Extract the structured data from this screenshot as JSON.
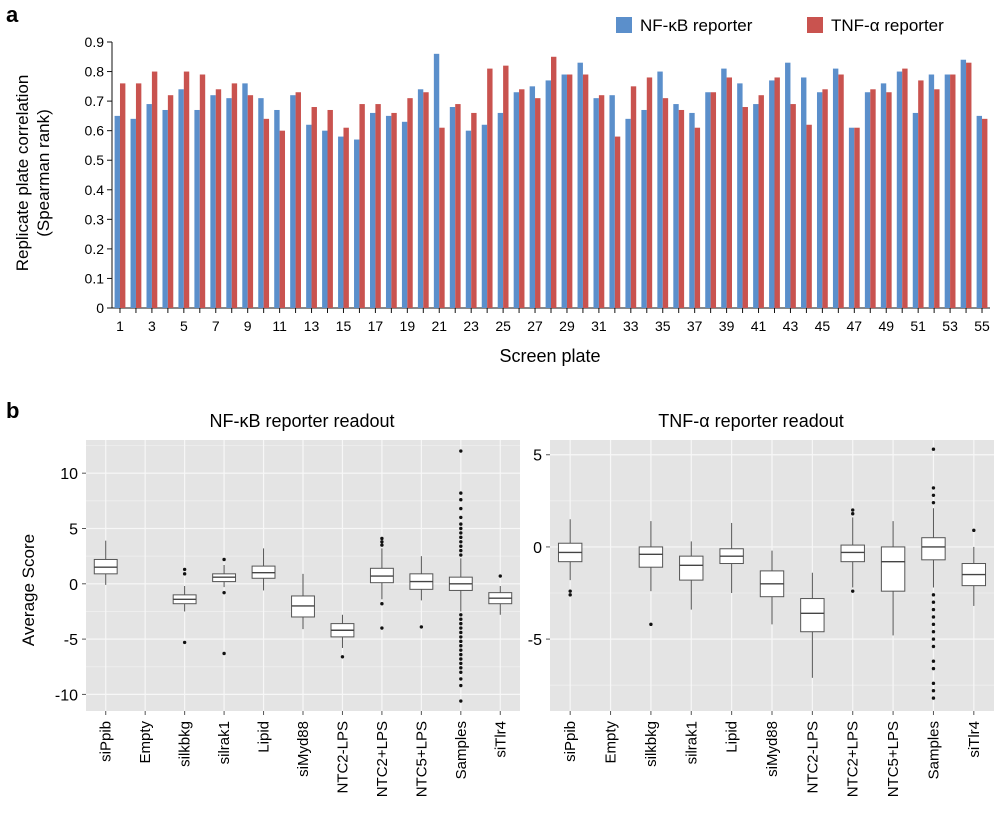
{
  "panel_a": {
    "letter": "a",
    "chart_data": {
      "type": "bar",
      "title": "",
      "ylabel_line1": "Replicate plate correlation",
      "ylabel_line2": "(Spearman rank)",
      "xlabel": "Screen plate",
      "ylim": [
        0,
        0.9
      ],
      "yticks": [
        "0",
        "0.1",
        "0.2",
        "0.3",
        "0.4",
        "0.5",
        "0.6",
        "0.7",
        "0.8",
        "0.9"
      ],
      "categories": [
        "1",
        "2",
        "3",
        "4",
        "5",
        "6",
        "7",
        "8",
        "9",
        "10",
        "11",
        "12",
        "13",
        "14",
        "15",
        "16",
        "17",
        "18",
        "19",
        "20",
        "21",
        "22",
        "23",
        "24",
        "25",
        "26",
        "27",
        "28",
        "29",
        "30",
        "31",
        "32",
        "33",
        "34",
        "35",
        "36",
        "37",
        "38",
        "39",
        "40",
        "41",
        "42",
        "43",
        "44",
        "45",
        "46",
        "47",
        "48",
        "49",
        "50",
        "51",
        "52",
        "53",
        "54",
        "55"
      ],
      "xtick_labels": [
        "1",
        "3",
        "5",
        "7",
        "9",
        "11",
        "13",
        "15",
        "17",
        "19",
        "21",
        "23",
        "25",
        "27",
        "29",
        "31",
        "33",
        "35",
        "37",
        "39",
        "41",
        "43",
        "45",
        "47",
        "49",
        "51",
        "53",
        "55"
      ],
      "legend_position": "top-right",
      "grid": false,
      "series": [
        {
          "name": "NF-κB reporter",
          "color": "#5b8fcb",
          "values": [
            0.65,
            0.64,
            0.69,
            0.67,
            0.74,
            0.67,
            0.72,
            0.71,
            0.76,
            0.71,
            0.67,
            0.72,
            0.62,
            0.6,
            0.58,
            0.57,
            0.66,
            0.65,
            0.63,
            0.74,
            0.86,
            0.68,
            0.6,
            0.62,
            0.66,
            0.73,
            0.75,
            0.77,
            0.79,
            0.83,
            0.71,
            0.72,
            0.64,
            0.67,
            0.8,
            0.69,
            0.66,
            0.73,
            0.81,
            0.76,
            0.69,
            0.77,
            0.83,
            0.78,
            0.73,
            0.81,
            0.61,
            0.73,
            0.76,
            0.8,
            0.66,
            0.79,
            0.79,
            0.84,
            0.65
          ]
        },
        {
          "name": "TNF-α reporter",
          "color": "#c9534f",
          "values": [
            0.76,
            0.76,
            0.8,
            0.72,
            0.8,
            0.79,
            0.74,
            0.76,
            0.72,
            0.64,
            0.6,
            0.73,
            0.68,
            0.67,
            0.61,
            0.69,
            0.69,
            0.66,
            0.71,
            0.73,
            0.61,
            0.69,
            0.66,
            0.81,
            0.82,
            0.74,
            0.71,
            0.85,
            0.79,
            0.79,
            0.72,
            0.58,
            0.75,
            0.78,
            0.71,
            0.67,
            0.61,
            0.73,
            0.78,
            0.68,
            0.72,
            0.78,
            0.69,
            0.62,
            0.74,
            0.79,
            0.61,
            0.74,
            0.73,
            0.81,
            0.77,
            0.74,
            0.79,
            0.83,
            0.64
          ]
        }
      ]
    }
  },
  "panel_b": {
    "letter": "b",
    "ylabel": "Average Score",
    "chart_data": [
      {
        "type": "box",
        "title": "NF-κB reporter readout",
        "ylim": [
          -11.5,
          13
        ],
        "yticks": [
          10,
          5,
          0,
          -5,
          -10
        ],
        "ytick_labels": [
          "10",
          "5",
          "0",
          "-5",
          "-10"
        ],
        "grid": true,
        "categories": [
          "siPpib",
          "Empty",
          "silkbkg",
          "silrak1",
          "Lipid",
          "siMyd88",
          "NTC2-LPS",
          "NTC2+LPS",
          "NTC5+LPS",
          "Samples",
          "siTlr4"
        ],
        "boxes": [
          {
            "category": "siPpib",
            "whisker_low": -0.1,
            "q1": 0.9,
            "median": 1.5,
            "q3": 2.2,
            "whisker_high": 3.9,
            "outliers": []
          },
          {
            "category": "Empty",
            "empty": true
          },
          {
            "category": "silkbkg",
            "whisker_low": -2.5,
            "q1": -1.8,
            "median": -1.4,
            "q3": -1.0,
            "whisker_high": -0.2,
            "outliers": [
              -5.3,
              0.9,
              1.3
            ]
          },
          {
            "category": "silrak1",
            "whisker_low": -0.3,
            "q1": 0.2,
            "median": 0.6,
            "q3": 0.9,
            "whisker_high": 1.7,
            "outliers": [
              -0.8,
              -6.3,
              2.2
            ]
          },
          {
            "category": "Lipid",
            "whisker_low": -0.6,
            "q1": 0.5,
            "median": 1.0,
            "q3": 1.6,
            "whisker_high": 3.2,
            "outliers": []
          },
          {
            "category": "siMyd88",
            "whisker_low": -4.1,
            "q1": -3.0,
            "median": -2.0,
            "q3": -1.1,
            "whisker_high": 0.9,
            "outliers": []
          },
          {
            "category": "NTC2-LPS",
            "whisker_low": -5.8,
            "q1": -4.8,
            "median": -4.2,
            "q3": -3.6,
            "whisker_high": -2.8,
            "outliers": [
              -6.6
            ]
          },
          {
            "category": "NTC2+LPS",
            "whisker_low": -1.4,
            "q1": 0.1,
            "median": 0.7,
            "q3": 1.4,
            "whisker_high": 3.2,
            "outliers": [
              -1.8,
              -4.0,
              3.5,
              3.8,
              4.1
            ]
          },
          {
            "category": "NTC5+LPS",
            "whisker_low": -1.5,
            "q1": -0.5,
            "median": 0.2,
            "q3": 0.9,
            "whisker_high": 2.5,
            "outliers": [
              -3.9
            ]
          },
          {
            "category": "Samples",
            "whisker_low": -2.5,
            "q1": -0.6,
            "median": 0.0,
            "q3": 0.6,
            "whisker_high": 2.3,
            "outliers": [
              -2.8,
              -3.2,
              -3.6,
              -4.0,
              -4.4,
              -4.8,
              -5.2,
              -5.6,
              -6.0,
              -6.4,
              -6.8,
              -7.2,
              -7.6,
              -8.0,
              -8.6,
              -9.2,
              -10.6,
              2.6,
              3.0,
              3.4,
              3.8,
              4.2,
              4.6,
              5.0,
              5.4,
              6.0,
              6.8,
              7.6,
              8.2,
              12.0
            ]
          },
          {
            "category": "siTlr4",
            "whisker_low": -2.8,
            "q1": -1.8,
            "median": -1.3,
            "q3": -0.8,
            "whisker_high": -0.2,
            "outliers": [
              0.7
            ]
          }
        ]
      },
      {
        "type": "box",
        "title": "TNF-α reporter readout",
        "ylim": [
          -8.9,
          5.8
        ],
        "yticks": [
          5,
          0,
          -5
        ],
        "ytick_labels": [
          "5",
          "0",
          "-5"
        ],
        "grid": true,
        "categories": [
          "siPpib",
          "Empty",
          "silkbkg",
          "silrak1",
          "Lipid",
          "siMyd88",
          "NTC2-LPS",
          "NTC2+LPS",
          "NTC5+LPS",
          "Samples",
          "siTlr4"
        ],
        "boxes": [
          {
            "category": "siPpib",
            "whisker_low": -1.8,
            "q1": -0.8,
            "median": -0.3,
            "q3": 0.2,
            "whisker_high": 1.5,
            "outliers": [
              -2.4,
              -2.6
            ]
          },
          {
            "category": "Empty",
            "empty": true
          },
          {
            "category": "silkbkg",
            "whisker_low": -2.4,
            "q1": -1.1,
            "median": -0.4,
            "q3": 0.0,
            "whisker_high": 1.4,
            "outliers": [
              -4.2
            ]
          },
          {
            "category": "silrak1",
            "whisker_low": -3.4,
            "q1": -1.8,
            "median": -1.0,
            "q3": -0.5,
            "whisker_high": 0.3,
            "outliers": []
          },
          {
            "category": "Lipid",
            "whisker_low": -2.5,
            "q1": -0.9,
            "median": -0.5,
            "q3": -0.1,
            "whisker_high": 1.3,
            "outliers": []
          },
          {
            "category": "siMyd88",
            "whisker_low": -4.2,
            "q1": -2.7,
            "median": -2.0,
            "q3": -1.3,
            "whisker_high": -0.2,
            "outliers": []
          },
          {
            "category": "NTC2-LPS",
            "whisker_low": -7.1,
            "q1": -4.6,
            "median": -3.6,
            "q3": -2.8,
            "whisker_high": -1.4,
            "outliers": []
          },
          {
            "category": "NTC2+LPS",
            "whisker_low": -2.2,
            "q1": -0.8,
            "median": -0.3,
            "q3": 0.1,
            "whisker_high": 1.6,
            "outliers": [
              1.8,
              2.0,
              -2.4
            ]
          },
          {
            "category": "NTC5+LPS",
            "whisker_low": -4.8,
            "q1": -2.4,
            "median": -0.8,
            "q3": 0.0,
            "whisker_high": 1.4,
            "outliers": []
          },
          {
            "category": "Samples",
            "whisker_low": -2.2,
            "q1": -0.7,
            "median": 0.0,
            "q3": 0.5,
            "whisker_high": 2.1,
            "outliers": [
              -2.6,
              -3.0,
              -3.4,
              -3.8,
              -4.2,
              -4.6,
              -5.0,
              -5.4,
              -6.2,
              -6.6,
              -7.4,
              -7.8,
              -8.2,
              2.4,
              2.8,
              3.2,
              5.3
            ]
          },
          {
            "category": "siTlr4",
            "whisker_low": -3.2,
            "q1": -2.1,
            "median": -1.5,
            "q3": -0.9,
            "whisker_high": 0.0,
            "outliers": [
              0.9
            ]
          }
        ]
      }
    ]
  }
}
